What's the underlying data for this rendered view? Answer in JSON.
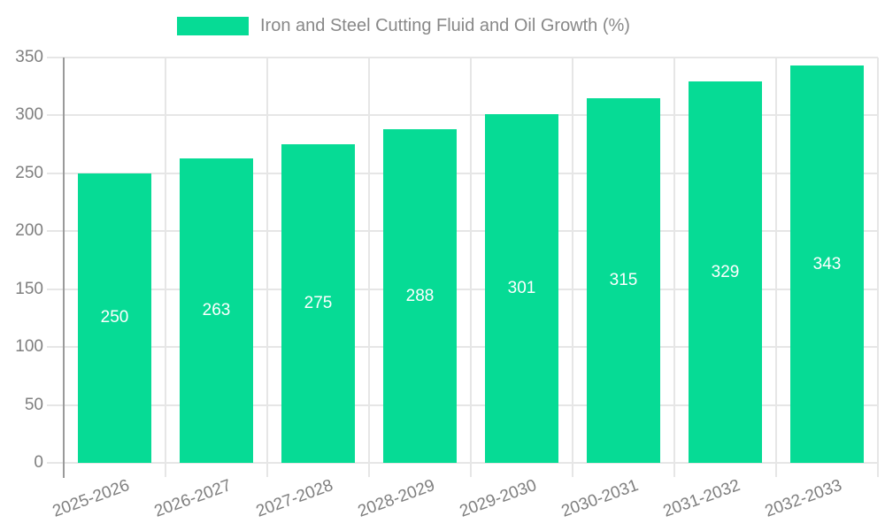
{
  "chart_data": {
    "type": "bar",
    "title": "",
    "legend": {
      "label": "Iron and Steel Cutting Fluid and Oil Growth (%)",
      "position": "top"
    },
    "categories": [
      "2025-2026",
      "2026-2027",
      "2027-2028",
      "2028-2029",
      "2029-2030",
      "2030-2031",
      "2031-2032",
      "2032-2033"
    ],
    "series": [
      {
        "name": "Iron and Steel Cutting Fluid and Oil Growth (%)",
        "values": [
          250,
          263,
          275,
          288,
          301,
          315,
          329,
          343
        ]
      }
    ],
    "bar_value_labels": [
      "250",
      "263",
      "275",
      "288",
      "301",
      "315",
      "329",
      "343"
    ],
    "xlabel": "",
    "ylabel": "",
    "ylim": [
      0,
      350
    ],
    "yticks": [
      0,
      50,
      100,
      150,
      200,
      250,
      300,
      350
    ],
    "grid": true,
    "colors": {
      "bar": "#06db95",
      "grid": "#e6e6e6",
      "axis_line": "#9a9a9a",
      "axis_text": "#7f7f7f",
      "legend_text": "#888888",
      "bar_label_text": "#ffffff",
      "background": "#ffffff"
    }
  }
}
